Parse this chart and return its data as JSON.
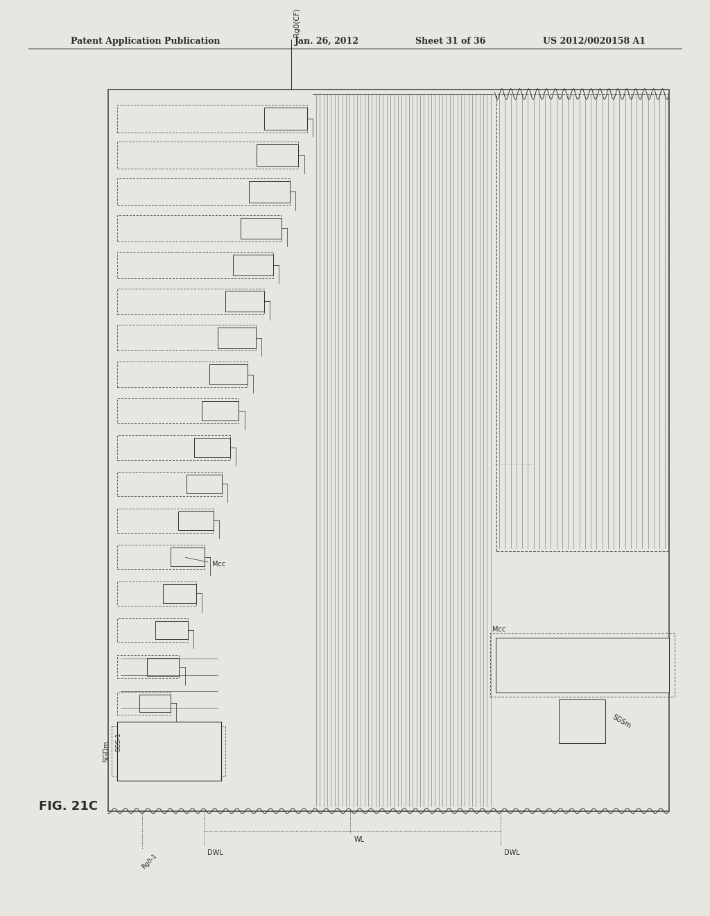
{
  "bg_color": "#e8e6e0",
  "header_text": "Patent Application Publication",
  "header_date": "Jan. 26, 2012",
  "header_sheet": "Sheet 31 of 36",
  "header_patent": "US 2012/0020158 A1",
  "figure_label": "FIG. 21C",
  "main_color": "#2a2a2a",
  "stripe_color": "#555555",
  "box_face": "#e8e6e0",
  "n_wl_upper": 9,
  "n_wl_lower": 9,
  "OL": 0.152,
  "OB": 0.115,
  "OW": 0.79,
  "OH": 0.79
}
